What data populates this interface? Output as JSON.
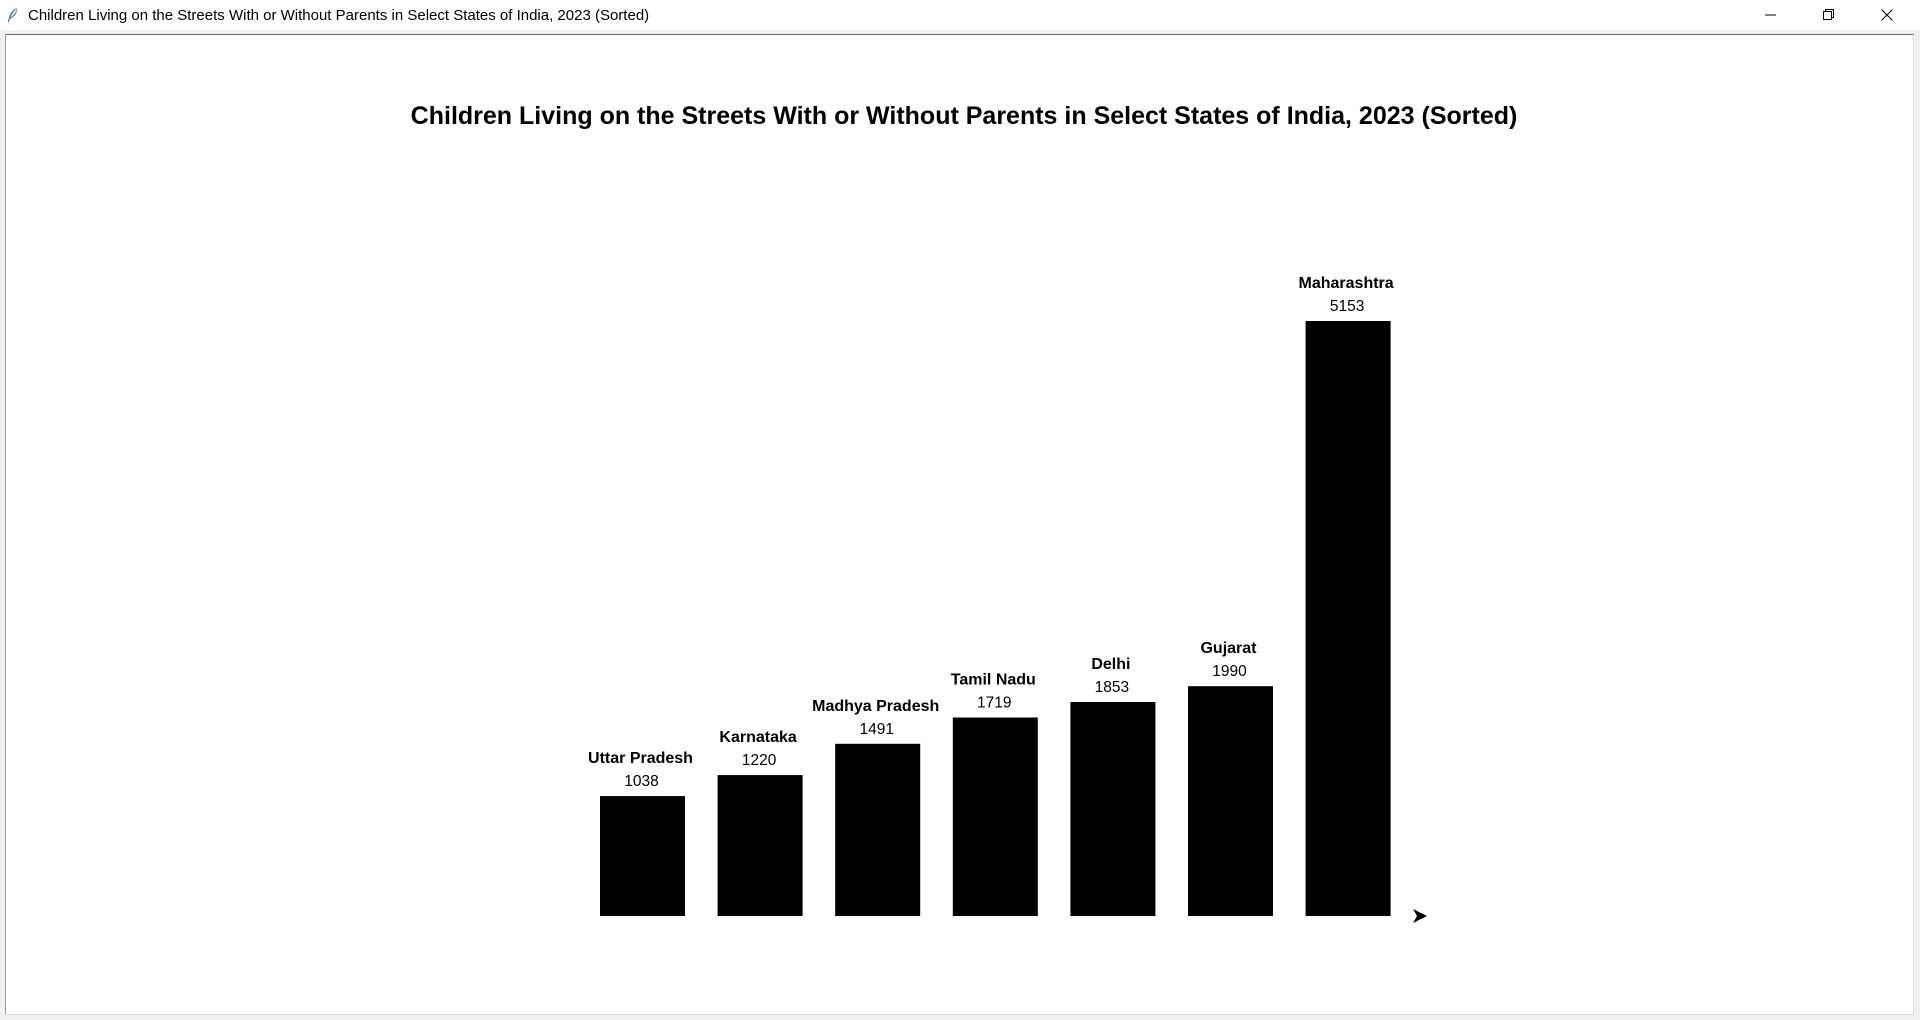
{
  "window": {
    "title": "Children Living on the Streets With or Without Parents in Select States of India, 2023 (Sorted)",
    "app_icon": "feather-icon",
    "controls": {
      "minimize_icon": "minimize-icon",
      "maximize_icon": "restore-icon",
      "close_icon": "close-icon"
    }
  },
  "chart_data": {
    "type": "bar",
    "title": "Children Living on the Streets With or Without Parents in Select States of India, 2023 (Sorted)",
    "categories": [
      "Uttar Pradesh",
      "Karnataka",
      "Madhya Pradesh",
      "Tamil Nadu",
      "Delhi",
      "Gujarat",
      "Maharashtra"
    ],
    "values": [
      1038,
      1220,
      1491,
      1719,
      1853,
      1990,
      5153
    ],
    "value_labels": [
      "1038",
      "1220",
      "1491",
      "1719",
      "1853",
      "1990",
      "5153"
    ],
    "xlabel": "",
    "ylabel": "",
    "ylim": [
      0,
      5153
    ],
    "bar_color": "#000000",
    "grid": false,
    "legend": "none",
    "axis_arrow_icon": "arrow-right-icon"
  }
}
